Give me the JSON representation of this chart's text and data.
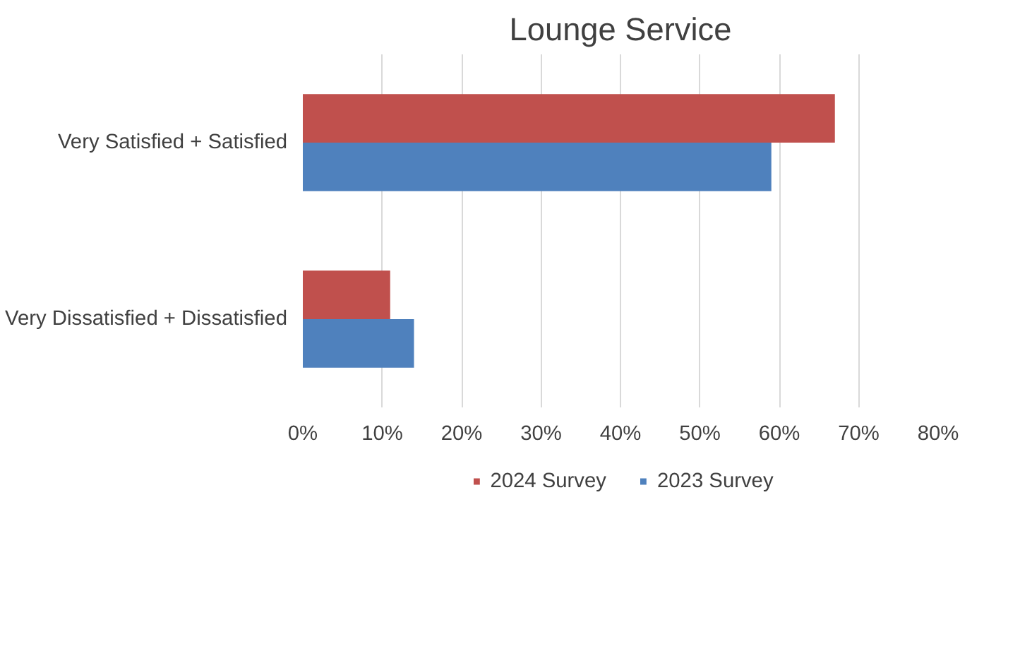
{
  "chart_data": {
    "type": "bar",
    "orientation": "horizontal",
    "title": "Lounge Service",
    "categories": [
      "Very Satisfied + Satisfied",
      "Very Dissatisfied + Dissatisfied"
    ],
    "series": [
      {
        "name": "2024 Survey",
        "color": "#c0504d",
        "values": [
          67,
          11
        ]
      },
      {
        "name": "2023 Survey",
        "color": "#4f81bd",
        "values": [
          59,
          14
        ]
      }
    ],
    "xlim": [
      0,
      80
    ],
    "xticks": [
      {
        "value": 0,
        "label": "0%"
      },
      {
        "value": 10,
        "label": "10%"
      },
      {
        "value": 20,
        "label": "20%"
      },
      {
        "value": 30,
        "label": "30%"
      },
      {
        "value": 40,
        "label": "40%"
      },
      {
        "value": 50,
        "label": "50%"
      },
      {
        "value": 60,
        "label": "60%"
      },
      {
        "value": 70,
        "label": "70%"
      },
      {
        "value": 80,
        "label": "80%"
      }
    ],
    "grid": "x",
    "legend": "bottom"
  }
}
